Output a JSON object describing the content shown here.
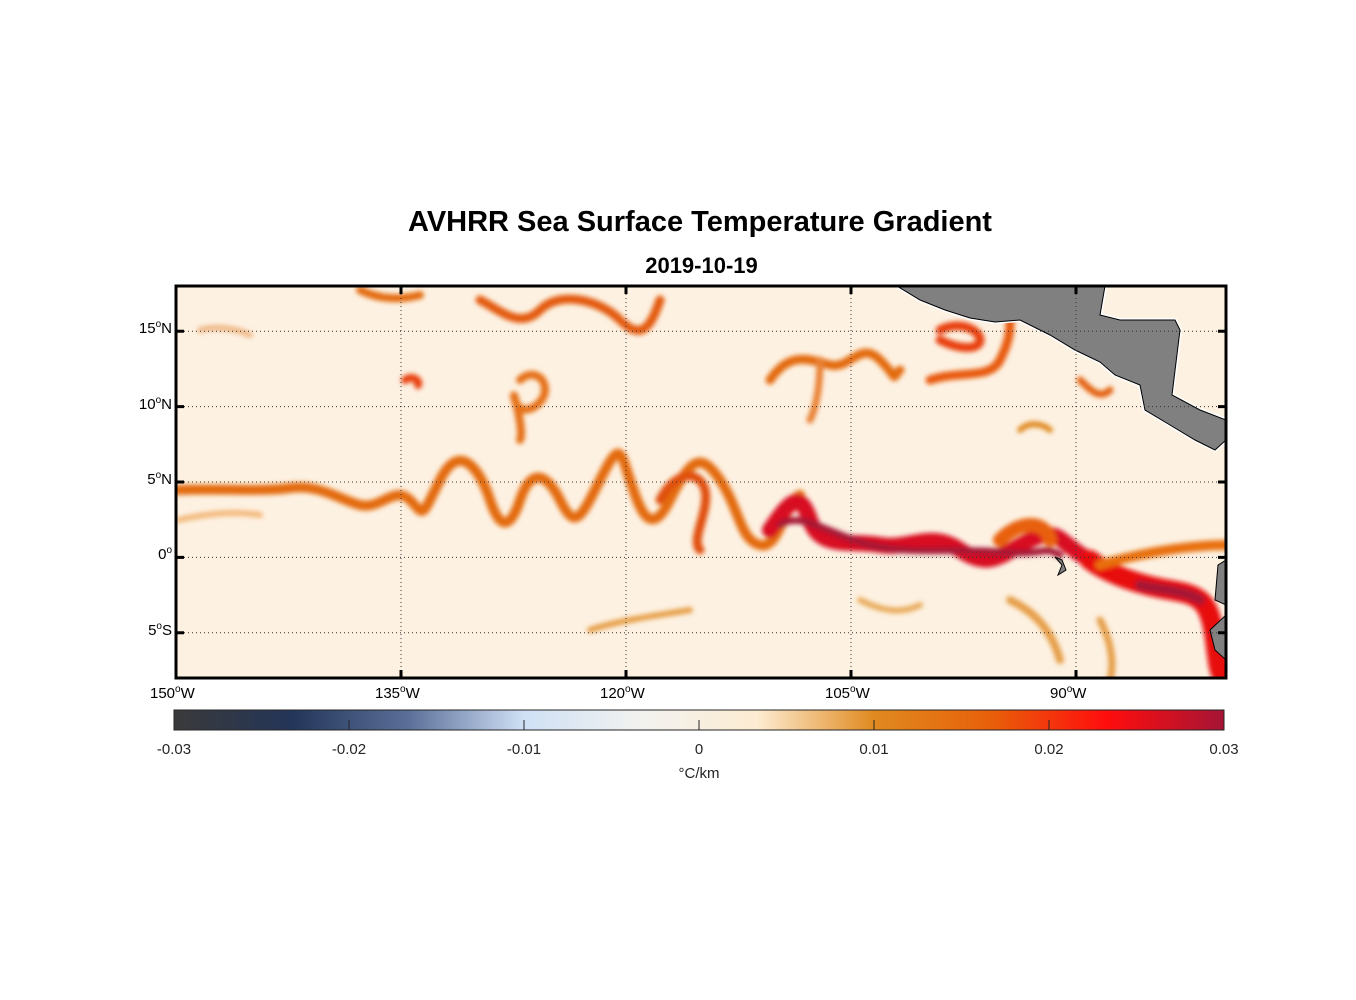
{
  "title": "AVHRR Sea Surface Temperature Gradient",
  "subtitle": "2019-10-19",
  "chart_data": {
    "type": "heatmap",
    "title": "AVHRR Sea Surface Temperature Gradient",
    "subtitle": "2019-10-19",
    "lon_range": [
      -150,
      -80
    ],
    "lat_range": [
      -8,
      18
    ],
    "lon_ticks": [
      {
        "value": -150,
        "label": "150",
        "suffix": "W"
      },
      {
        "value": -135,
        "label": "135",
        "suffix": "W"
      },
      {
        "value": -120,
        "label": "120",
        "suffix": "W"
      },
      {
        "value": -105,
        "label": "105",
        "suffix": "W"
      },
      {
        "value": -90,
        "label": "90",
        "suffix": "W"
      }
    ],
    "lat_ticks": [
      {
        "value": 15,
        "label": "15",
        "suffix": "N"
      },
      {
        "value": 10,
        "label": "10",
        "suffix": "N"
      },
      {
        "value": 5,
        "label": "5",
        "suffix": "N"
      },
      {
        "value": 0,
        "label": "0",
        "suffix": ""
      },
      {
        "value": -5,
        "label": "5",
        "suffix": "S"
      }
    ],
    "grid": true,
    "colorbar": {
      "range": [
        -0.03,
        0.03
      ],
      "ticks": [
        "-0.03",
        "-0.02",
        "-0.01",
        "0",
        "0.01",
        "0.02",
        "0.03"
      ],
      "tick_values": [
        -0.03,
        -0.02,
        -0.01,
        0,
        0.01,
        0.02,
        0.03
      ],
      "label": "°C/km",
      "placement": "bottom",
      "colors": [
        "#3a3a3a",
        "#233558",
        "#5a6e98",
        "#cfe0f5",
        "#f2f2f0",
        "#fdecd2",
        "#e08a20",
        "#e8600a",
        "#ff0d0d",
        "#a51535"
      ]
    },
    "land_color": "#808080"
  }
}
